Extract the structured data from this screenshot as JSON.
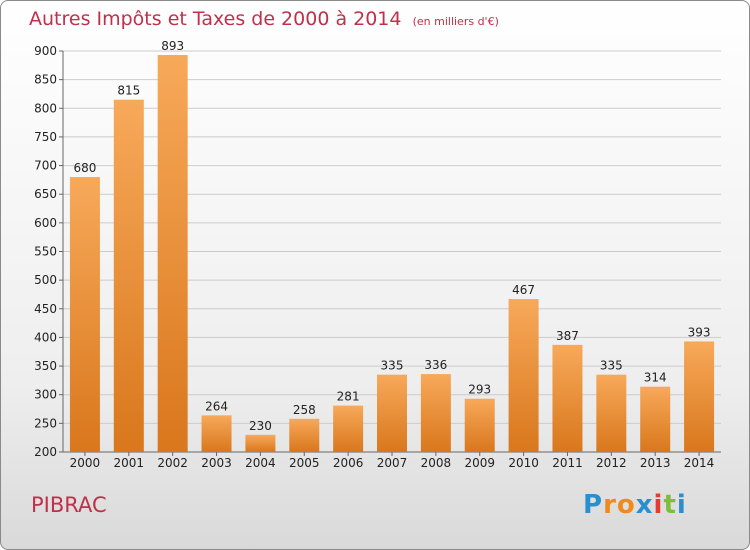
{
  "chart_data": {
    "type": "bar",
    "title": "Autres Impôts et Taxes de 2000 à 2014",
    "subtitle": "(en milliers d'€)",
    "categories": [
      "2000",
      "2001",
      "2002",
      "2003",
      "2004",
      "2005",
      "2006",
      "2007",
      "2008",
      "2009",
      "2010",
      "2011",
      "2012",
      "2013",
      "2014"
    ],
    "values": [
      680,
      815,
      893,
      264,
      230,
      258,
      281,
      335,
      336,
      293,
      467,
      387,
      335,
      314,
      393
    ],
    "ylim": [
      200,
      900
    ],
    "yticks": [
      200,
      250,
      300,
      350,
      400,
      450,
      500,
      550,
      600,
      650,
      700,
      750,
      800,
      850,
      900
    ],
    "grid": true,
    "bar_color_top": "#f7a95a",
    "bar_color_bottom": "#d9771c"
  },
  "commune": "PIBRAC",
  "brand": {
    "letters": [
      "P",
      "r",
      "o",
      "x",
      "i",
      "t",
      "i"
    ],
    "colors": [
      "#2a8fd0",
      "#f08a1c",
      "#f08a1c",
      "#2a8fd0",
      "#e63b2e",
      "#7bbf3a",
      "#2a8fd0"
    ]
  },
  "colors": {
    "title": "#c0304a",
    "grid": "#cccccc",
    "axis": "#666666"
  }
}
